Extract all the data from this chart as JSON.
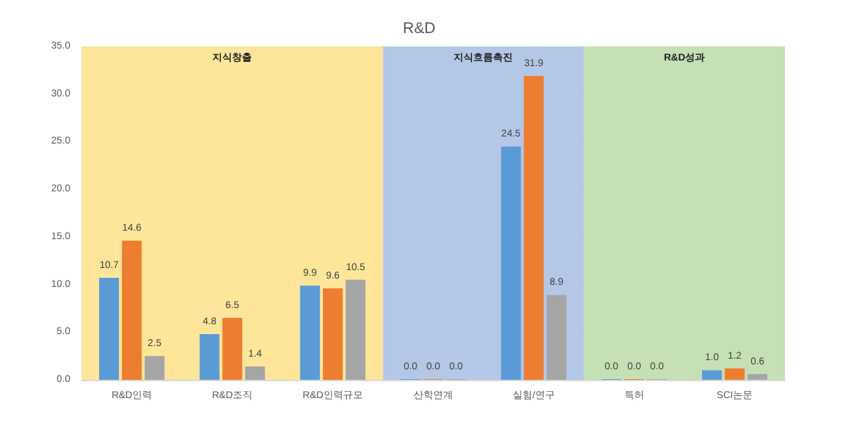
{
  "chart_data": {
    "type": "bar",
    "title": "R&D",
    "categories": [
      "R&D인력",
      "R&D조직",
      "R&D인력규모",
      "산학연계",
      "실험/연구",
      "특허",
      "SCI논문"
    ],
    "series": [
      {
        "color": "#5b9bd5",
        "values": [
          10.7,
          4.8,
          9.9,
          0,
          24.5,
          0,
          1.0
        ],
        "value_labels": [
          "10.7",
          "4.8",
          "9.9",
          "0.0",
          "24.5",
          "0.0",
          "1.0"
        ]
      },
      {
        "color": "#ed7d31",
        "values": [
          14.6,
          6.5,
          9.6,
          0,
          31.9,
          0,
          1.2
        ],
        "value_labels": [
          "14.6",
          "6.5",
          "9.6",
          "0.0",
          "31.9",
          "0.0",
          "1.2"
        ]
      },
      {
        "color": "#a5a5a5",
        "values": [
          2.5,
          1.4,
          10.5,
          0,
          8.9,
          0,
          0.6
        ],
        "value_labels": [
          "2.5",
          "1.4",
          "10.5",
          "0.0",
          "8.9",
          "0.0",
          "0.6"
        ]
      }
    ],
    "ylim": [
      0,
      35
    ],
    "yticks": [
      {
        "value": 0,
        "label": "0.0"
      },
      {
        "value": 5,
        "label": "5.0"
      },
      {
        "value": 10,
        "label": "10.0"
      },
      {
        "value": 15,
        "label": "15.0"
      },
      {
        "value": 20,
        "label": "20.0"
      },
      {
        "value": 25,
        "label": "25.0"
      },
      {
        "value": 30,
        "label": "30.0"
      },
      {
        "value": 35,
        "label": "35.0"
      }
    ],
    "grid": "y",
    "bands": [
      {
        "axis": "x",
        "from": "R&D인력",
        "to": "R&D인력규모",
        "label": "지식창출",
        "color": "#fde59a"
      },
      {
        "axis": "x",
        "from": "산학연계",
        "to": "실험/연구",
        "label": "지식흐름촉진",
        "color": "#b4c7e7"
      },
      {
        "axis": "x",
        "from": "특허",
        "to": "SCI논문",
        "label": "R&D성과",
        "color": "#c5e0b4"
      }
    ]
  }
}
